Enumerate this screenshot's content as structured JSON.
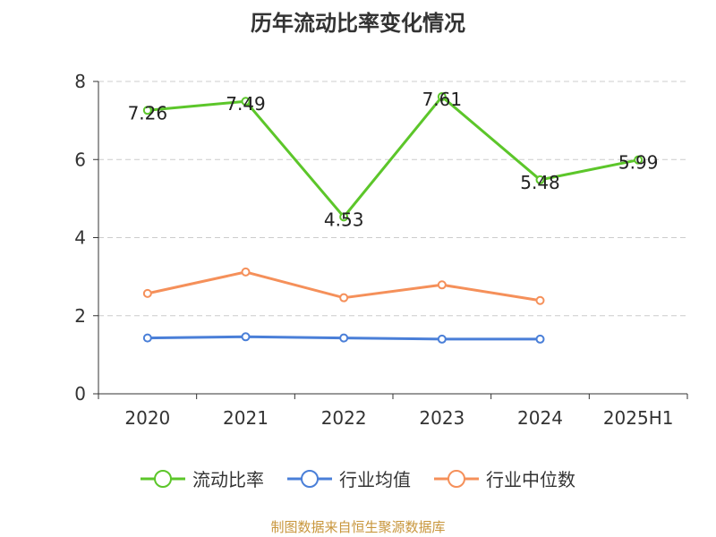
{
  "title": "历年流动比率变化情况",
  "footer": "制图数据来自恒生聚源数据库",
  "chart_data": {
    "type": "line",
    "title": "历年流动比率变化情况",
    "categories": [
      "2020",
      "2021",
      "2022",
      "2023",
      "2024",
      "2025H1"
    ],
    "ylim": [
      0,
      8
    ],
    "yticks": [
      0,
      2,
      4,
      6,
      8
    ],
    "grid": true,
    "legend_position": "bottom",
    "series": [
      {
        "name": "流动比率",
        "color": "#5cc62a",
        "values": [
          7.26,
          7.49,
          4.53,
          7.61,
          5.48,
          5.99
        ],
        "labels": [
          "7.26",
          "7.49",
          "4.53",
          "7.61",
          "5.48",
          "5.99"
        ]
      },
      {
        "name": "行业均值",
        "color": "#4a7fd8",
        "values": [
          1.43,
          1.46,
          1.43,
          1.4,
          1.4,
          null
        ]
      },
      {
        "name": "行业中位数",
        "color": "#f5905a",
        "values": [
          2.57,
          3.12,
          2.46,
          2.79,
          2.39,
          null
        ]
      }
    ]
  }
}
